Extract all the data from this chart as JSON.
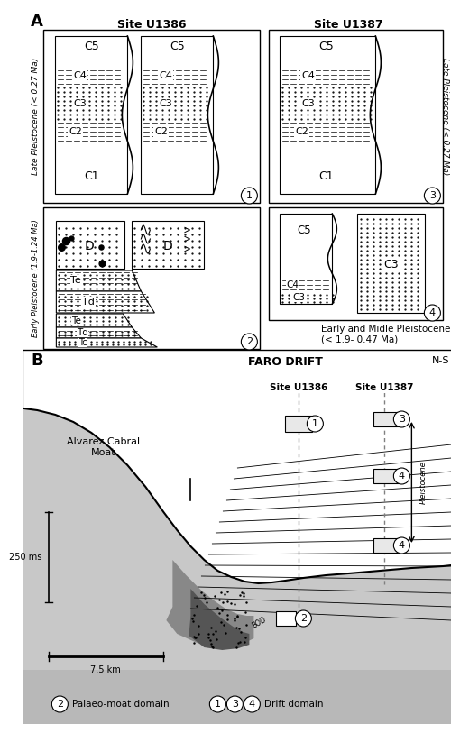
{
  "fig_width": 4.74,
  "fig_height": 7.93,
  "bg_color": "#ffffff",
  "panel_A_label": "A",
  "panel_B_label": "B",
  "site_u1386": "Site U1386",
  "site_u1387": "Site U1387",
  "late_pleistocene_left": "Late Pleistocene (< 0.27 Ma)",
  "late_pleistocene_right": "Late Pleistocene (< 0.27 Ma)",
  "early_pleistocene": "Early Pleistocene (1.9-1.24 Ma)",
  "early_mid_pleistocene": "Early and Midle Pleistocene\n(< 1.9- 0.47 Ma)",
  "faro_drift": "FARO DRIFT",
  "ns_label": "N-S",
  "alvarez_cabral": "Alvarez Cabral\nMoat",
  "scale_250ms": "250 ms",
  "scale_75km": "7.5 km",
  "palaeo_moat": "Palaeo-moat domain",
  "drift_domain": "Drift domain",
  "pleistocene_label": "Pleistocene",
  "bod_label": "BOD"
}
